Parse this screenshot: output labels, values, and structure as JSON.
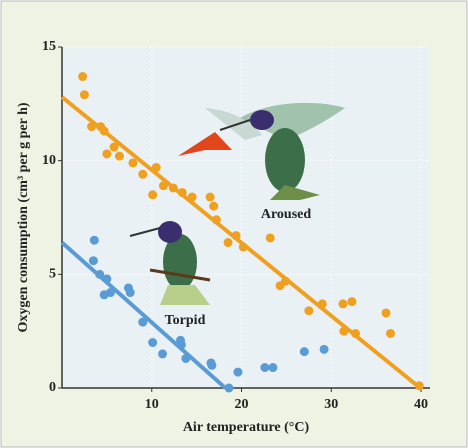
{
  "chart_data": {
    "type": "scatter",
    "xlabel": "Air temperature (°C)",
    "ylabel": "Oxygen consumption (cm³ per g per h)",
    "xlim": [
      0,
      41
    ],
    "ylim": [
      0,
      15
    ],
    "xticks": [
      10,
      20,
      30,
      40
    ],
    "yticks": [
      0,
      5,
      10,
      15
    ],
    "grid": true,
    "series": [
      {
        "name": "Aroused",
        "color": "#f0a020",
        "x": [
          2.3,
          2.5,
          3.3,
          4.3,
          4.7,
          5.0,
          5.8,
          6.4,
          7.9,
          9.0,
          10.5,
          10.1,
          11.3,
          12.4,
          13.4,
          14.5,
          16.5,
          16.9,
          17.2,
          18.5,
          19.4,
          20.2,
          23.2,
          24.3,
          24.9,
          27.5,
          29.0,
          31.3,
          32.3,
          31.4,
          32.7,
          36.1,
          36.6,
          39.8
        ],
        "values": [
          13.7,
          12.9,
          11.5,
          11.5,
          11.3,
          10.3,
          10.6,
          10.2,
          9.9,
          9.4,
          9.7,
          8.5,
          8.9,
          8.8,
          8.6,
          8.4,
          8.4,
          8.0,
          7.4,
          6.4,
          6.7,
          6.2,
          6.6,
          4.5,
          4.7,
          3.4,
          3.7,
          3.7,
          3.8,
          2.5,
          2.4,
          3.3,
          2.4,
          0.1
        ],
        "trend": {
          "x": [
            0,
            39.9
          ],
          "values": [
            12.8,
            0
          ]
        }
      },
      {
        "name": "Torpid",
        "color": "#5b9bd5",
        "x": [
          3.6,
          3.5,
          4.2,
          5.0,
          4.7,
          5.4,
          7.4,
          7.6,
          9.0,
          10.1,
          11.2,
          13.2,
          13.3,
          13.8,
          16.6,
          16.7,
          18.6,
          19.6,
          22.6,
          23.5,
          27.0,
          29.2
        ],
        "values": [
          6.5,
          5.6,
          5.0,
          4.8,
          4.1,
          4.2,
          4.4,
          4.2,
          2.9,
          2.0,
          1.5,
          2.1,
          1.9,
          1.3,
          1.1,
          1.0,
          0.0,
          0.7,
          0.9,
          0.9,
          1.6,
          1.7
        ],
        "trend": {
          "x": [
            0,
            18.2
          ],
          "values": [
            6.4,
            0
          ]
        }
      }
    ]
  }
}
